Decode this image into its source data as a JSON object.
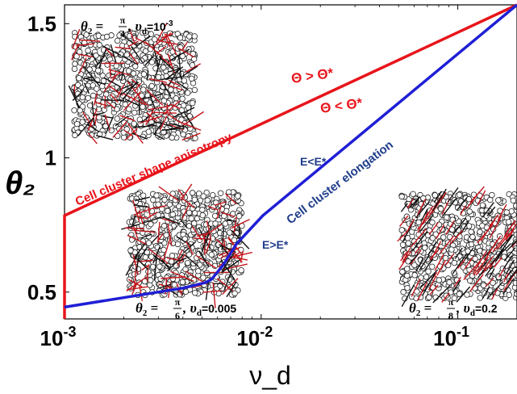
{
  "chart_data": {
    "type": "line",
    "title": "",
    "xlabel": "ν_d",
    "ylabel": "θ₂",
    "xscale": "log",
    "xlim": [
      0.001,
      0.2
    ],
    "ylim": [
      0.4,
      1.57
    ],
    "grid": false,
    "x_ticks": [
      {
        "value": 0.001,
        "base": "10",
        "exp": "-3"
      },
      {
        "value": 0.01,
        "base": "10",
        "exp": "-2"
      },
      {
        "value": 0.1,
        "base": "10",
        "exp": "-1"
      }
    ],
    "y_ticks": [
      {
        "value": 0.5,
        "label": "0.5"
      },
      {
        "value": 1.0,
        "label": "1"
      },
      {
        "value": 1.5,
        "label": "1.5"
      }
    ],
    "series": [
      {
        "key": "red",
        "color": "#e8141b",
        "points": [
          [
            0.001,
            0.4
          ],
          [
            0.001,
            0.785
          ],
          [
            0.2,
            1.57
          ]
        ]
      },
      {
        "key": "blue",
        "color": "#1f1fd6",
        "points": [
          [
            0.001,
            0.444
          ],
          [
            0.004,
            0.515
          ],
          [
            0.0052,
            0.535
          ],
          [
            0.0056,
            0.548
          ],
          [
            0.0064,
            0.6
          ],
          [
            0.0075,
            0.68
          ],
          [
            0.0102,
            0.785
          ],
          [
            0.2,
            1.57
          ]
        ]
      }
    ],
    "annotations": {
      "red_region": "Cell cluster shape anisotropy",
      "theta_gt": "Θ > Θ*",
      "theta_lt": "Θ < Θ*",
      "blue_region": "Cell cluster elongation",
      "e_lt": "E<E*",
      "e_gt": "E>E*"
    },
    "insets": [
      {
        "key": "topleft",
        "theta": "θ",
        "theta_sub": "2",
        "eq": " = ",
        "num": "π",
        "den": "4",
        "nu": ", υ",
        "nu_sub": "d",
        "value": "=10",
        "value_sup": "-3"
      },
      {
        "key": "middle",
        "theta": "θ",
        "theta_sub": "2",
        "eq": " = ",
        "num": "π",
        "den": "6",
        "nu": ", υ",
        "nu_sub": "d",
        "value": "=0.005",
        "value_sup": ""
      },
      {
        "key": "right",
        "theta": "θ",
        "theta_sub": "2",
        "eq": " = ",
        "num": "π",
        "den": "8",
        "nu": ", υ",
        "nu_sub": "d",
        "value": "=0.2",
        "value_sup": ""
      }
    ],
    "colors": {
      "red": "#e8141b",
      "blue": "#1f1fd6",
      "annotation_blue": "#1f3d8a"
    }
  }
}
